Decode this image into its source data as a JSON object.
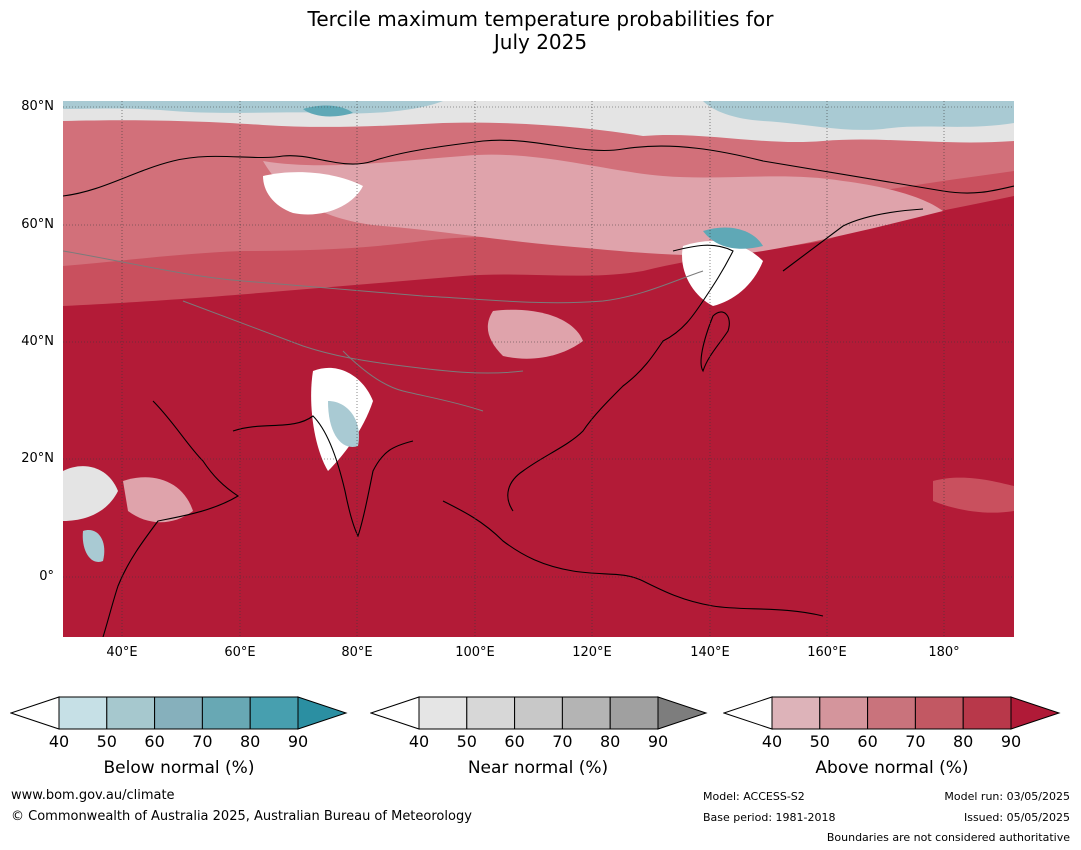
{
  "title_line1": "Tercile maximum temperature probabilities for",
  "title_line2": "July 2025",
  "map": {
    "lat_labels": [
      "80°N",
      "60°N",
      "40°N",
      "20°N",
      "0°"
    ],
    "lon_labels": [
      "40°E",
      "60°E",
      "80°E",
      "100°E",
      "120°E",
      "140°E",
      "160°E",
      "180°"
    ],
    "lat_range": [
      -10,
      80
    ],
    "lon_range": [
      30,
      191
    ],
    "colors": {
      "above_dominant": "#b31b37",
      "above_70": "#c9505e",
      "above_60": "#d2707a",
      "above_50": "#dfa3ab",
      "above_40": "#eacbcf",
      "near": "#e4e4e4",
      "below_50": "#a9cad3",
      "below_70": "#5fa8b6",
      "coast": "#000000",
      "border": "#7b7b7b"
    }
  },
  "legends": [
    {
      "title": "Below normal (%)",
      "ticks": [
        "40",
        "50",
        "60",
        "70",
        "80",
        "90"
      ],
      "colors": [
        "#c6e0e6",
        "#a6c8ce",
        "#86b0bc",
        "#68a8b4",
        "#479faf",
        "#2b8fa2"
      ]
    },
    {
      "title": "Near normal (%)",
      "ticks": [
        "40",
        "50",
        "60",
        "70",
        "80",
        "90"
      ],
      "colors": [
        "#e5e5e5",
        "#d7d7d7",
        "#c8c8c8",
        "#b4b4b4",
        "#a0a0a0",
        "#7d7d7d"
      ]
    },
    {
      "title": "Above normal (%)",
      "ticks": [
        "40",
        "50",
        "60",
        "70",
        "80",
        "90"
      ],
      "colors": [
        "#ddb3b9",
        "#d4959c",
        "#c9737c",
        "#c25863",
        "#b8384a",
        "#b01a37"
      ]
    }
  ],
  "footer": {
    "website": "www.bom.gov.au/climate",
    "copyright": "© Commonwealth of Australia 2025, Australian Bureau of Meteorology",
    "model": "Model: ACCESS-S2",
    "base_period": "Base period: 1981-2018",
    "model_run": "Model run: 03/05/2025",
    "issued": "Issued: 05/05/2025",
    "disclaimer": "Boundaries are not considered authoritative"
  }
}
